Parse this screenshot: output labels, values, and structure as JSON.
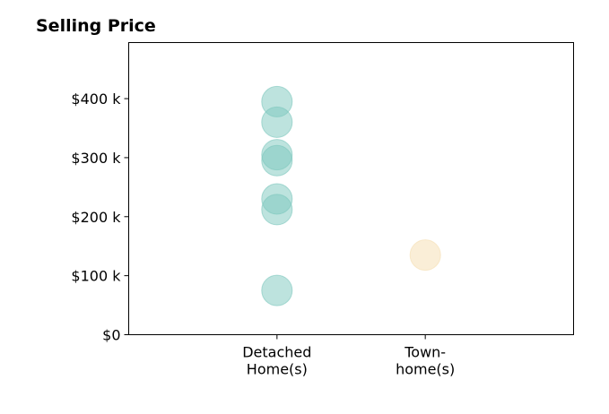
{
  "chart_data": {
    "type": "scatter",
    "title": "Selling Price",
    "categories": [
      "Detached\nHome(s)",
      "Town-\nhome(s)"
    ],
    "y_ticks": [
      {
        "value": 0,
        "label": "$0"
      },
      {
        "value": 100000,
        "label": "$100 k"
      },
      {
        "value": 200000,
        "label": "$200 k"
      },
      {
        "value": 300000,
        "label": "$300 k"
      },
      {
        "value": 400000,
        "label": "$400 k"
      }
    ],
    "ylim": [
      0,
      495000
    ],
    "xlim": [
      -1,
      2
    ],
    "grid": false,
    "legend": false,
    "series": [
      {
        "category_index": 0,
        "color": "#7cc7bd",
        "values": [
          395000,
          360000,
          305000,
          295000,
          230000,
          212000,
          75000
        ]
      },
      {
        "category_index": 1,
        "color": "#f5deb0",
        "values": [
          135000
        ]
      }
    ]
  }
}
